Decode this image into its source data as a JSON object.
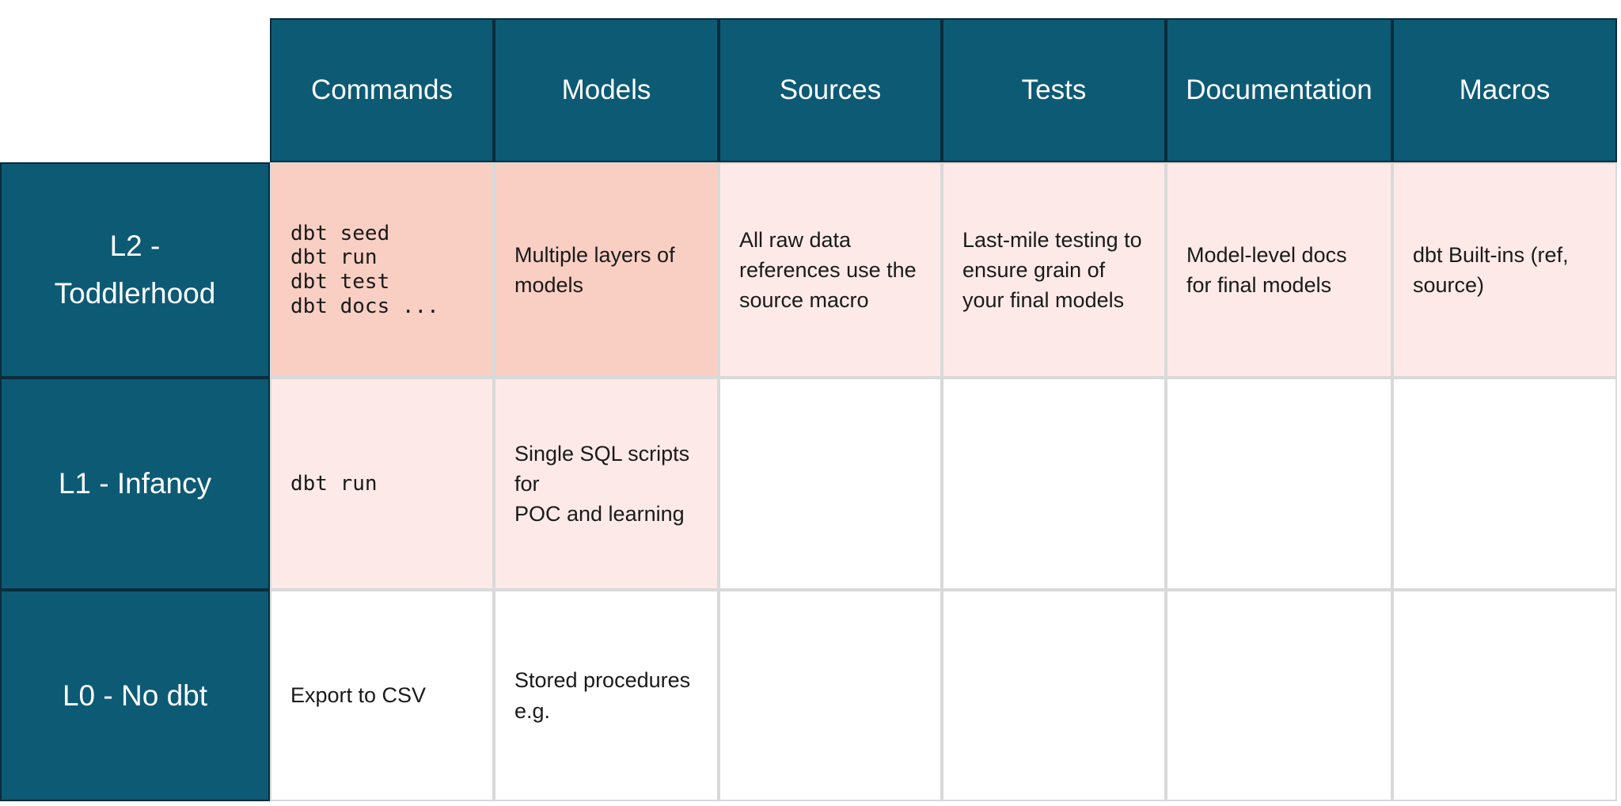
{
  "colors": {
    "header_teal": "#0d5a75",
    "teal_border": "#0a2c3b",
    "highlight_strong": "#f9cfc4",
    "highlight_soft": "#fdeae8",
    "empty_cell": "#ffffff",
    "grid_line": "#d9d9d9",
    "body_text": "#1a1a1a",
    "header_text": "#ffffff"
  },
  "chart_data": {
    "type": "table",
    "title": "dbt maturity levels matrix",
    "columns": [
      "Commands",
      "Models",
      "Sources",
      "Tests",
      "Documentation",
      "Macros"
    ],
    "rows": [
      {
        "label": "L2 -\nToddlerhood",
        "cells": [
          {
            "text": "dbt seed\ndbt run\ndbt test\ndbt docs ...",
            "format": "mono",
            "highlight": "strong"
          },
          {
            "text": "Multiple layers of\nmodels",
            "format": "sans",
            "highlight": "strong"
          },
          {
            "text": "All raw data\nreferences use the\nsource macro",
            "format": "sans",
            "highlight": "soft"
          },
          {
            "text": "Last-mile testing to\nensure grain of\nyour final models",
            "format": "sans",
            "highlight": "soft"
          },
          {
            "text": "Model-level docs\nfor final models",
            "format": "sans",
            "highlight": "soft"
          },
          {
            "text": "dbt Built-ins (ref,\nsource)",
            "format": "sans",
            "highlight": "soft"
          }
        ]
      },
      {
        "label": "L1 - Infancy",
        "cells": [
          {
            "text": "dbt run",
            "format": "mono",
            "highlight": "soft"
          },
          {
            "text": "Single SQL scripts for\nPOC and learning",
            "format": "sans",
            "highlight": "soft"
          },
          {
            "text": "",
            "format": "sans",
            "highlight": "none"
          },
          {
            "text": "",
            "format": "sans",
            "highlight": "none"
          },
          {
            "text": "",
            "format": "sans",
            "highlight": "none"
          },
          {
            "text": "",
            "format": "sans",
            "highlight": "none"
          }
        ]
      },
      {
        "label": "L0 - No dbt",
        "cells": [
          {
            "text": "Export to CSV",
            "format": "sans",
            "highlight": "none"
          },
          {
            "text": "Stored procedures\ne.g.",
            "format": "sans",
            "highlight": "none"
          },
          {
            "text": "",
            "format": "sans",
            "highlight": "none"
          },
          {
            "text": "",
            "format": "sans",
            "highlight": "none"
          },
          {
            "text": "",
            "format": "sans",
            "highlight": "none"
          },
          {
            "text": "",
            "format": "sans",
            "highlight": "none"
          }
        ]
      }
    ]
  }
}
